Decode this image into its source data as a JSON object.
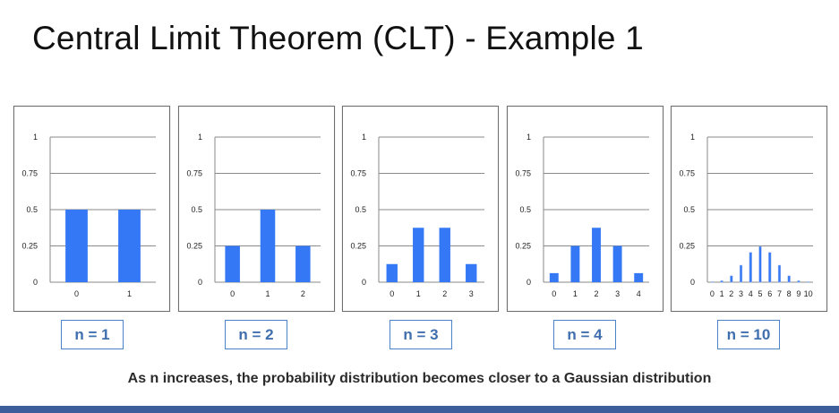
{
  "slide": {
    "title": "Central Limit Theorem (CLT) - Example 1",
    "caption": "As n increases, the probability distribution becomes closer to a Gaussian distribution"
  },
  "colors": {
    "bar": "#3478f6",
    "grid": "#8a8a8a",
    "label_border": "#4a83c8",
    "label_text": "#3f6fae",
    "bottom_bar": "#3c5f9c"
  },
  "chart_data": [
    {
      "type": "bar",
      "n_label": "n = 1",
      "categories": [
        "0",
        "1"
      ],
      "values": [
        0.5,
        0.5
      ],
      "ylim": [
        0,
        1
      ],
      "yticks": [
        "1",
        "0.75",
        "0.5",
        "0.25",
        "0"
      ],
      "grid": true
    },
    {
      "type": "bar",
      "n_label": "n = 2",
      "categories": [
        "0",
        "1",
        "2"
      ],
      "values": [
        0.25,
        0.5,
        0.25
      ],
      "ylim": [
        0,
        1
      ],
      "yticks": [
        "1",
        "0.75",
        "0.5",
        "0.25",
        "0"
      ],
      "grid": true
    },
    {
      "type": "bar",
      "n_label": "n = 3",
      "categories": [
        "0",
        "1",
        "2",
        "3"
      ],
      "values": [
        0.125,
        0.375,
        0.375,
        0.125
      ],
      "ylim": [
        0,
        1
      ],
      "yticks": [
        "1",
        "0.75",
        "0.5",
        "0.25",
        "0"
      ],
      "grid": true
    },
    {
      "type": "bar",
      "n_label": "n = 4",
      "categories": [
        "0",
        "1",
        "2",
        "3",
        "4"
      ],
      "values": [
        0.0625,
        0.25,
        0.375,
        0.25,
        0.0625
      ],
      "ylim": [
        0,
        1
      ],
      "yticks": [
        "1",
        "0.75",
        "0.5",
        "0.25",
        "0"
      ],
      "grid": true
    },
    {
      "type": "bar",
      "n_label": "n = 10",
      "categories": [
        "0",
        "1",
        "2",
        "3",
        "4",
        "5",
        "6",
        "7",
        "8",
        "9",
        "10"
      ],
      "values": [
        0.001,
        0.01,
        0.044,
        0.117,
        0.205,
        0.246,
        0.205,
        0.117,
        0.044,
        0.01,
        0.001
      ],
      "ylim": [
        0,
        1
      ],
      "yticks": [
        "1",
        "0.75",
        "0.5",
        "0.25",
        "0"
      ],
      "grid": true
    }
  ]
}
